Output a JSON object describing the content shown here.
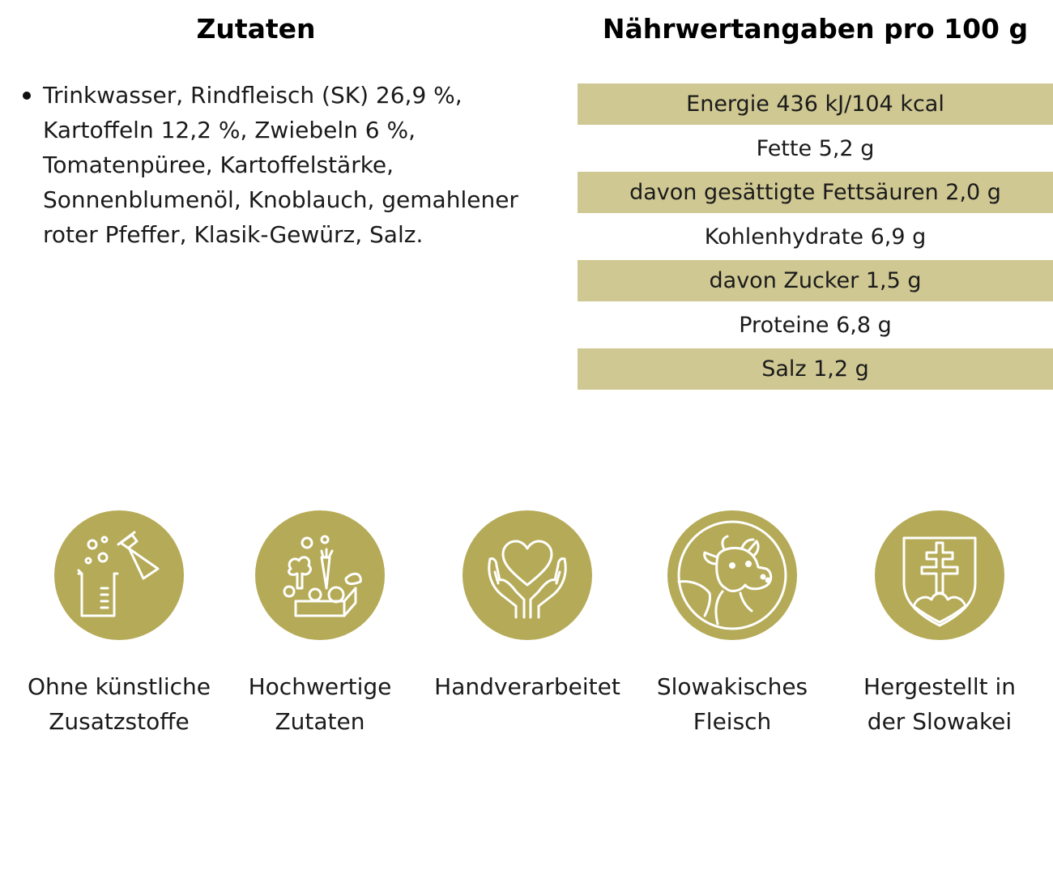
{
  "ingredients": {
    "heading": "Zutaten",
    "items": [
      "Trinkwasser, Rindfleisch (SK) 26,9 %, Kartoffeln 12,2 %, Zwiebeln 6 %, Tomatenpüree, Kartoffelstärke, Sonnenblumenöl, Knoblauch, gemahlener roter Pfeffer, Klasik-Gewürz, Salz."
    ]
  },
  "nutrition": {
    "heading": "Nährwertangaben pro 100 g",
    "rows": [
      "Energie 436 kJ/104 kcal",
      "Fette 5,2 g",
      "davon gesättigte Fettsäuren 2,0 g",
      "Kohlenhydrate 6,9 g",
      "davon Zucker 1,5 g",
      "Proteine 6,8 g",
      "Salz 1,2 g"
    ],
    "row_shade_color": "#cfc893"
  },
  "features": [
    {
      "icon": "lab-flask-beaker-icon",
      "label": "Ohne künstliche\nZusatzstoffe"
    },
    {
      "icon": "vegetables-box-icon",
      "label": "Hochwertige\nZutaten"
    },
    {
      "icon": "heart-in-hands-icon",
      "label": "Handverarbeitet"
    },
    {
      "icon": "cow-head-icon",
      "label": "Slowakisches\nFleisch"
    },
    {
      "icon": "slovak-coat-of-arms-icon",
      "label": "Hergestellt in\nder Slowakei"
    }
  ],
  "colors": {
    "icon_circle": "#b5aa57",
    "icon_line": "#ffffff",
    "table_shade": "#cfc893"
  }
}
